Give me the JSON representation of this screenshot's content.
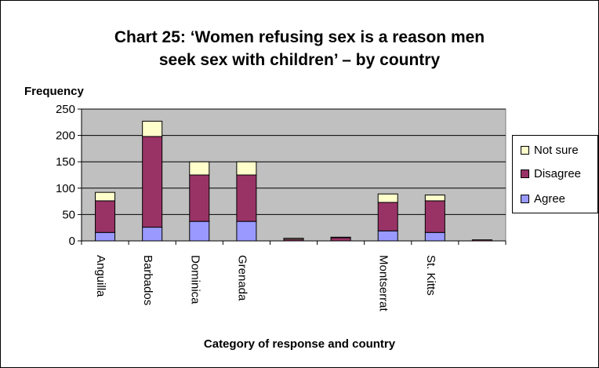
{
  "chart_data": {
    "type": "bar",
    "stacked": true,
    "title_line1": "Chart 25: ‘Women refusing sex is a reason men",
    "title_line2": "seek sex with children’ – by country",
    "ylabel": "Frequency",
    "xlabel": "Category of response and country",
    "ylim": [
      0,
      250
    ],
    "yticks": [
      "0",
      "50",
      "100",
      "150",
      "200",
      "250"
    ],
    "grid": true,
    "legend_position": "right",
    "categories": [
      "Anguilla",
      "Barbados",
      "Dominica",
      "Grenada",
      "",
      "",
      "Montserrat",
      "St. Kitts",
      ""
    ],
    "series": [
      {
        "name": "Agree",
        "color": "#9999FF",
        "values": [
          16,
          26,
          37,
          37,
          0,
          0,
          19,
          16,
          0
        ]
      },
      {
        "name": "Disagree",
        "color": "#993366",
        "values": [
          60,
          172,
          88,
          88,
          3,
          6,
          54,
          60,
          2
        ]
      },
      {
        "name": "Not sure",
        "color": "#FFFFCC",
        "values": [
          16,
          29,
          25,
          25,
          2,
          1,
          16,
          11,
          0
        ]
      }
    ],
    "legend_order": [
      "Not sure",
      "Disagree",
      "Agree"
    ],
    "plot_background": "#C0C0C0"
  }
}
